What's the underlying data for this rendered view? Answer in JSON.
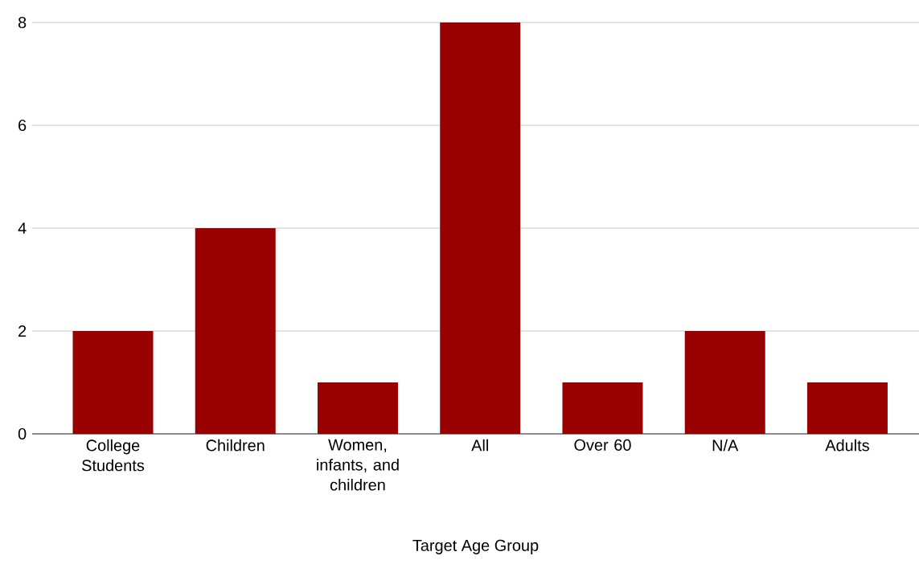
{
  "chart_data": {
    "type": "bar",
    "xlabel": "Target Age Group",
    "categories": [
      "College Students",
      "Children",
      "Women, infants, and children",
      "All",
      "Over 60",
      "N/A",
      "Adults"
    ],
    "values": [
      2,
      4,
      1,
      8,
      1,
      2,
      1
    ],
    "color": "#990000",
    "ylim": [
      0,
      8
    ],
    "yticks": [
      0,
      2,
      4,
      6,
      8
    ],
    "grid": "y"
  }
}
